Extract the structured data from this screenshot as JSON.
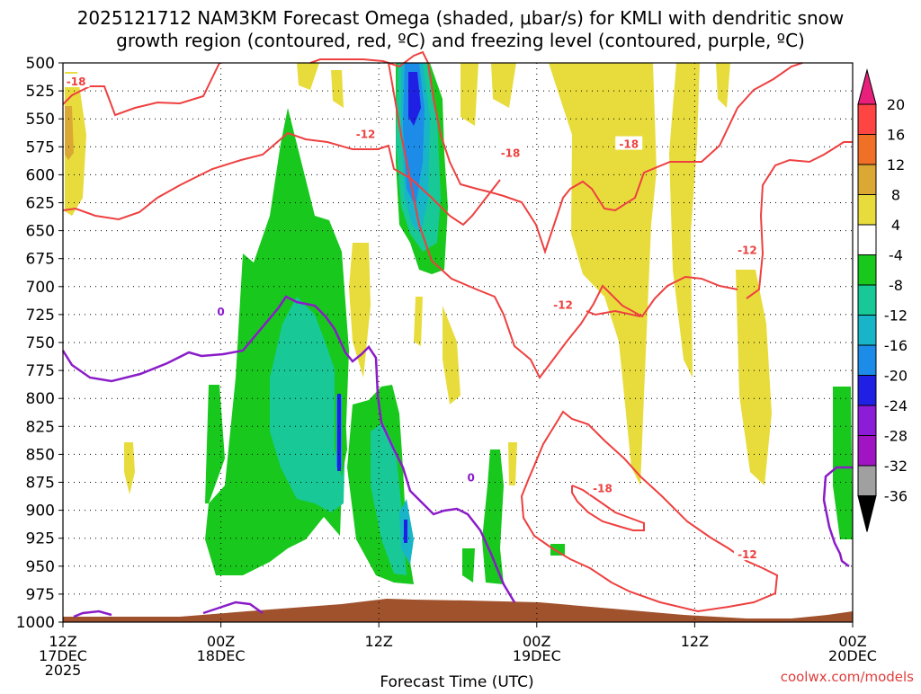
{
  "chart_data": {
    "type": "time-height cross section",
    "title_line1": "2025121712 NAM3KM Forecast Omega (shaded, μbar/s) for KMLI with dendritic snow",
    "title_line2": "growth region (contoured, red, ºC) and freezing level (contoured, purple, ºC)",
    "xlabel": "Forecast Time (UTC)",
    "y_axis": {
      "unit": "hPa",
      "ticks": [
        "500",
        "525",
        "550",
        "575",
        "600",
        "625",
        "650",
        "675",
        "700",
        "725",
        "750",
        "775",
        "800",
        "825",
        "850",
        "875",
        "900",
        "925",
        "950",
        "975",
        "1000"
      ],
      "ylim": [
        1000,
        500
      ]
    },
    "x_axis": {
      "xlim": [
        "2025-12-17 12Z",
        "2025-12-20 00Z"
      ],
      "ticks": [
        {
          "t": "2025-12-17 12Z",
          "lines": [
            "12Z",
            "17DEC",
            "2025"
          ]
        },
        {
          "t": "2025-12-18 00Z",
          "lines": [
            "00Z",
            "18DEC"
          ]
        },
        {
          "t": "2025-12-18 12Z",
          "lines": [
            "12Z"
          ]
        },
        {
          "t": "2025-12-19 00Z",
          "lines": [
            "00Z",
            "19DEC"
          ]
        },
        {
          "t": "2025-12-19 12Z",
          "lines": [
            "12Z"
          ]
        },
        {
          "t": "2025-12-20 00Z",
          "lines": [
            "00Z",
            "20DEC"
          ]
        }
      ]
    },
    "grid": true,
    "colorbar": {
      "labels": [
        "20",
        "16",
        "12",
        "8",
        "4",
        "-4",
        "-8",
        "-12",
        "-16",
        "-20",
        "-24",
        "-28",
        "-32",
        "-36"
      ],
      "bins": [
        {
          "range": [
            16,
            20
          ],
          "color": "#ff4444"
        },
        {
          "range": [
            12,
            16
          ],
          "color": "#f07028"
        },
        {
          "range": [
            8,
            12
          ],
          "color": "#dca834"
        },
        {
          "range": [
            4,
            8
          ],
          "color": "#e8dc3c"
        },
        {
          "range": [
            -4,
            4
          ],
          "color": "#ffffff"
        },
        {
          "range": [
            -8,
            -4
          ],
          "color": "#18c81c"
        },
        {
          "range": [
            -12,
            -8
          ],
          "color": "#18c896"
        },
        {
          "range": [
            -16,
            -12
          ],
          "color": "#18b4c8"
        },
        {
          "range": [
            -20,
            -16
          ],
          "color": "#1c8ce8"
        },
        {
          "range": [
            -24,
            -20
          ],
          "color": "#2020e4"
        },
        {
          "range": [
            -28,
            -24
          ],
          "color": "#8c1cd8"
        },
        {
          "range": [
            -32,
            -28
          ],
          "color": "#a014c4"
        },
        {
          "range": [
            -36,
            -32
          ],
          "color": "#a0a0a0"
        }
      ],
      "top_extend_color": "#e8207c",
      "bottom_extend_color": "#000000"
    },
    "contour_labels": {
      "dgz": [
        {
          "text": "-18",
          "t": "2025-12-17 13Z",
          "p": 516
        },
        {
          "text": "-12",
          "t": "2025-12-18 11Z",
          "p": 563
        },
        {
          "text": "-18",
          "t": "2025-12-18 22Z",
          "p": 580
        },
        {
          "text": "-18",
          "t": "2025-12-19 07Z",
          "p": 572
        },
        {
          "text": "-12",
          "t": "2025-12-19 16Z",
          "p": 667
        },
        {
          "text": "-12",
          "t": "2025-12-19 02Z",
          "p": 716
        },
        {
          "text": "-18",
          "t": "2025-12-19 05Z",
          "p": 880
        },
        {
          "text": "-12",
          "t": "2025-12-19 16Z",
          "p": 939
        }
      ],
      "freezing": [
        {
          "text": "0",
          "t": "2025-12-18 00Z",
          "p": 722
        },
        {
          "text": "0",
          "t": "2025-12-18 19Z",
          "p": 870
        }
      ]
    },
    "colors": {
      "dgz_contour": "#ee4040",
      "freezing_contour": "#8a1cc8",
      "terrain": "#a0522d"
    },
    "credit": "coolwx.com/models"
  }
}
